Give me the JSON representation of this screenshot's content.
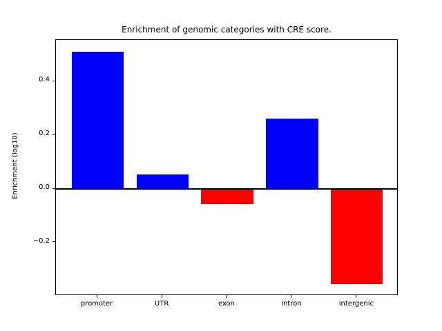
{
  "chart_data": {
    "type": "bar",
    "title": "Enrichment of genomic categories with CRE score.",
    "xlabel": "",
    "ylabel": "Enrichment (log10)",
    "categories": [
      "promoter",
      "UTR",
      "exon",
      "intron",
      "intergenic"
    ],
    "values": [
      0.512,
      0.055,
      -0.056,
      0.262,
      -0.355
    ],
    "bar_colors": [
      "#0000ff",
      "#0000ff",
      "#ff0000",
      "#0000ff",
      "#ff0000"
    ],
    "positive_color": "#0000ff",
    "negative_color": "#ff0000",
    "ylim": [
      -0.398,
      0.555
    ],
    "yticks": {
      "values": [
        0.4,
        0.2,
        0.0,
        -0.2
      ],
      "labels": [
        "0.4",
        "0.2",
        "0.0",
        "−0.2"
      ]
    },
    "zero_line": true,
    "zero_line_color": "#000000",
    "grid": false,
    "legend": null,
    "frame_color": "#000000",
    "background_color": "#ffffff"
  }
}
